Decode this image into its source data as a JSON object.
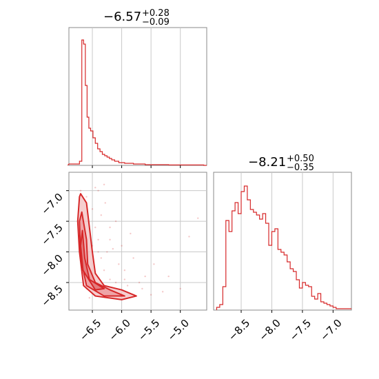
{
  "chart_data": [
    {
      "type": "histogram",
      "panel": "top-left",
      "title_main": "−6.57",
      "title_sup": "+0.28",
      "title_sub": "−0.09",
      "xlim": [
        -6.9,
        -4.55
      ],
      "ylim": [
        0,
        1.0
      ],
      "grid": true,
      "color": "#d62728",
      "bins": [
        [
          -6.92,
          0.01
        ],
        [
          -6.72,
          0.03
        ],
        [
          -6.68,
          0.91
        ],
        [
          -6.65,
          0.88
        ],
        [
          -6.62,
          0.58
        ],
        [
          -6.59,
          0.35
        ],
        [
          -6.56,
          0.27
        ],
        [
          -6.53,
          0.25
        ],
        [
          -6.49,
          0.2
        ],
        [
          -6.45,
          0.16
        ],
        [
          -6.41,
          0.12
        ],
        [
          -6.37,
          0.1
        ],
        [
          -6.33,
          0.08
        ],
        [
          -6.29,
          0.07
        ],
        [
          -6.25,
          0.06
        ],
        [
          -6.21,
          0.05
        ],
        [
          -6.17,
          0.04
        ],
        [
          -6.12,
          0.03
        ],
        [
          -6.05,
          0.02
        ],
        [
          -5.95,
          0.015
        ],
        [
          -5.8,
          0.01
        ],
        [
          -5.6,
          0.005
        ],
        [
          -5.2,
          0.003
        ],
        [
          -4.6,
          0.0
        ]
      ]
    },
    {
      "type": "histogram",
      "panel": "bottom-right",
      "title_main": "−8.21",
      "title_sup": "+0.50",
      "title_sub": "−0.35",
      "xlim": [
        -8.95,
        -6.7
      ],
      "ylim": [
        0,
        1.0
      ],
      "grid": true,
      "color": "#d62728",
      "xticks": [
        -8.5,
        -8.0,
        -7.5,
        -7.0
      ],
      "xticklabels": [
        "−8.5",
        "−8.0",
        "−7.5",
        "−7.0"
      ],
      "bins": [
        [
          -8.9,
          0.02
        ],
        [
          -8.85,
          0.04
        ],
        [
          -8.8,
          0.17
        ],
        [
          -8.75,
          0.65
        ],
        [
          -8.7,
          0.57
        ],
        [
          -8.65,
          0.72
        ],
        [
          -8.6,
          0.78
        ],
        [
          -8.55,
          0.7
        ],
        [
          -8.5,
          0.86
        ],
        [
          -8.45,
          0.9
        ],
        [
          -8.4,
          0.8
        ],
        [
          -8.35,
          0.73
        ],
        [
          -8.3,
          0.71
        ],
        [
          -8.25,
          0.69
        ],
        [
          -8.2,
          0.66
        ],
        [
          -8.15,
          0.7
        ],
        [
          -8.1,
          0.63
        ],
        [
          -8.05,
          0.47
        ],
        [
          -8.0,
          0.57
        ],
        [
          -7.95,
          0.59
        ],
        [
          -7.9,
          0.44
        ],
        [
          -7.85,
          0.42
        ],
        [
          -7.8,
          0.4
        ],
        [
          -7.75,
          0.35
        ],
        [
          -7.7,
          0.3
        ],
        [
          -7.65,
          0.28
        ],
        [
          -7.6,
          0.22
        ],
        [
          -7.55,
          0.16
        ],
        [
          -7.5,
          0.2
        ],
        [
          -7.45,
          0.18
        ],
        [
          -7.4,
          0.17
        ],
        [
          -7.35,
          0.1
        ],
        [
          -7.3,
          0.08
        ],
        [
          -7.25,
          0.12
        ],
        [
          -7.2,
          0.06
        ],
        [
          -7.15,
          0.05
        ],
        [
          -7.1,
          0.04
        ],
        [
          -7.05,
          0.03
        ],
        [
          -7.0,
          0.02
        ],
        [
          -6.95,
          0.01
        ]
      ]
    },
    {
      "type": "contour",
      "panel": "bottom-left",
      "xlim": [
        -6.9,
        -4.55
      ],
      "ylim": [
        -8.95,
        -6.7
      ],
      "grid": true,
      "color": "#d62728",
      "xticks": [
        -6.5,
        -6.0,
        -5.5,
        -5.0
      ],
      "xticklabels": [
        "−6.5",
        "−6.0",
        "−5.5",
        "−5.0"
      ],
      "yticks": [
        -7.0,
        -7.5,
        -8.0,
        -8.5
      ],
      "yticklabels": [
        "−7.0",
        "−7.5",
        "−8.0",
        "−8.5"
      ],
      "contour_levels": [
        [
          [
            -6.7,
            -7.05
          ],
          [
            -6.6,
            -7.2
          ],
          [
            -6.55,
            -7.6
          ],
          [
            -6.5,
            -8.0
          ],
          [
            -6.45,
            -8.35
          ],
          [
            -6.3,
            -8.55
          ],
          [
            -6.0,
            -8.62
          ],
          [
            -5.75,
            -8.72
          ],
          [
            -6.0,
            -8.78
          ],
          [
            -6.45,
            -8.72
          ],
          [
            -6.65,
            -8.55
          ],
          [
            -6.72,
            -8.0
          ],
          [
            -6.75,
            -7.5
          ],
          [
            -6.72,
            -7.1
          ]
        ],
        [
          [
            -6.68,
            -7.35
          ],
          [
            -6.6,
            -7.8
          ],
          [
            -6.58,
            -8.2
          ],
          [
            -6.45,
            -8.5
          ],
          [
            -6.2,
            -8.62
          ],
          [
            -5.95,
            -8.72
          ],
          [
            -6.3,
            -8.72
          ],
          [
            -6.6,
            -8.55
          ],
          [
            -6.7,
            -8.1
          ],
          [
            -6.72,
            -7.5
          ]
        ],
        [
          [
            -6.67,
            -7.65
          ],
          [
            -6.63,
            -8.1
          ],
          [
            -6.55,
            -8.45
          ],
          [
            -6.3,
            -8.6
          ],
          [
            -6.45,
            -8.62
          ],
          [
            -6.66,
            -8.3
          ],
          [
            -6.7,
            -7.9
          ]
        ]
      ],
      "points": [
        [
          -6.7,
          -7.0
        ],
        [
          -6.6,
          -7.1
        ],
        [
          -6.5,
          -7.3
        ],
        [
          -6.45,
          -7.6
        ],
        [
          -6.4,
          -7.8
        ],
        [
          -6.35,
          -8.1
        ],
        [
          -6.3,
          -8.3
        ],
        [
          -6.2,
          -8.45
        ],
        [
          -6.1,
          -8.5
        ],
        [
          -5.9,
          -8.55
        ],
        [
          -6.2,
          -7.6
        ],
        [
          -6.0,
          -7.9
        ],
        [
          -5.8,
          -8.1
        ],
        [
          -5.6,
          -8.4
        ],
        [
          -5.3,
          -8.65
        ],
        [
          -5.0,
          -8.6
        ],
        [
          -4.85,
          -7.75
        ],
        [
          -4.7,
          -7.45
        ],
        [
          -6.4,
          -7.0
        ],
        [
          -6.3,
          -6.9
        ],
        [
          -6.2,
          -7.8
        ],
        [
          -6.05,
          -8.2
        ],
        [
          -5.95,
          -8.3
        ],
        [
          -5.7,
          -8.5
        ],
        [
          -5.5,
          -8.7
        ],
        [
          -6.55,
          -8.75
        ],
        [
          -6.25,
          -8.0
        ],
        [
          -6.15,
          -7.95
        ],
        [
          -5.85,
          -7.7
        ],
        [
          -5.45,
          -8.2
        ],
        [
          -6.6,
          -8.6
        ],
        [
          -6.5,
          -7.9
        ],
        [
          -6.4,
          -8.0
        ],
        [
          -6.35,
          -7.4
        ],
        [
          -6.28,
          -7.2
        ],
        [
          -6.1,
          -7.5
        ],
        [
          -5.95,
          -8.45
        ],
        [
          -5.65,
          -8.6
        ],
        [
          -5.2,
          -8.4
        ],
        [
          -6.45,
          -6.95
        ]
      ]
    }
  ]
}
